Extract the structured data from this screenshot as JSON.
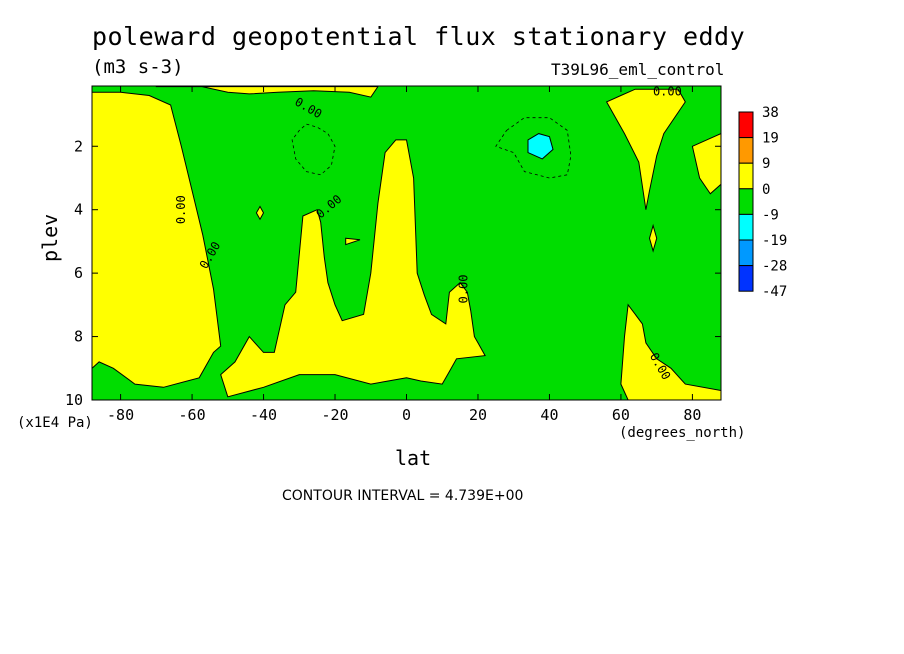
{
  "chart_data": {
    "type": "heatmap",
    "title": "poleward geopotential flux stationary eddy",
    "units": "(m3 s-3)",
    "run_label": "T39L96_eml_control",
    "xlabel": "lat",
    "x_units": "(degrees_north)",
    "ylabel": "plev",
    "y_units": "(x1E4 Pa)",
    "xlim": [
      -88,
      88
    ],
    "ylim": [
      10,
      0.1
    ],
    "x_ticks": [
      -80,
      -60,
      -40,
      -20,
      0,
      20,
      40,
      60,
      80
    ],
    "y_ticks": [
      2,
      4,
      6,
      8,
      10
    ],
    "contour_interval_text": "CONTOUR INTERVAL = 4.739E+00",
    "contour_line_label": "0.00",
    "colorbar": {
      "levels": [
        "38",
        "19",
        "9",
        "0",
        "-9",
        "-19",
        "-28",
        "-47"
      ],
      "colors": [
        "#ff0000",
        "#ff9900",
        "#ffff00",
        "#00dd00",
        "#00ffff",
        "#0099ff",
        "#0033ff"
      ]
    },
    "region_colors": {
      "positive_0_to_9": "#ffff00",
      "negative_-9_to_0": "#00dd00",
      "negative_-19_to_-9": "#00ffff",
      "frame": "#000000"
    },
    "regions": [
      {
        "value_class": "negative_-9_to_0",
        "polygon": [
          [
            -88,
            0.1
          ],
          [
            88,
            0.1
          ],
          [
            88,
            10
          ],
          [
            -88,
            10
          ]
        ]
      },
      {
        "value_class": "positive_0_to_9",
        "polygon": [
          [
            -88,
            0.3
          ],
          [
            -80,
            0.3
          ],
          [
            -72,
            0.4
          ],
          [
            -66,
            0.7
          ],
          [
            -63,
            2.0
          ],
          [
            -60,
            3.4
          ],
          [
            -57,
            4.8
          ],
          [
            -54,
            6.5
          ],
          [
            -52,
            8.3
          ],
          [
            -54,
            8.5
          ],
          [
            -58,
            9.3
          ],
          [
            -68,
            9.6
          ],
          [
            -76,
            9.5
          ],
          [
            -82,
            9.0
          ],
          [
            -86,
            8.8
          ],
          [
            -88,
            9.0
          ]
        ]
      },
      {
        "value_class": "positive_0_to_9",
        "polygon": [
          [
            -70,
            0.1
          ],
          [
            -58,
            0.1
          ],
          [
            -50,
            0.3
          ],
          [
            -44,
            0.35
          ],
          [
            -36,
            0.3
          ],
          [
            -26,
            0.25
          ],
          [
            -16,
            0.3
          ],
          [
            -10,
            0.45
          ],
          [
            -8,
            0.12
          ],
          [
            -70,
            0.12
          ]
        ]
      },
      {
        "value_class": "positive_0_to_9",
        "polygon": [
          [
            -25,
            4.0
          ],
          [
            -24,
            4.4
          ],
          [
            -23,
            5.5
          ],
          [
            -22,
            6.3
          ],
          [
            -20,
            7.0
          ],
          [
            -18,
            7.5
          ],
          [
            -12,
            7.3
          ],
          [
            -10,
            6.0
          ],
          [
            -8,
            3.8
          ],
          [
            -6,
            2.2
          ],
          [
            -3,
            1.8
          ],
          [
            0,
            1.8
          ],
          [
            2,
            3.0
          ],
          [
            3,
            6.0
          ],
          [
            5,
            6.7
          ],
          [
            7,
            7.3
          ],
          [
            11,
            7.6
          ],
          [
            12,
            6.6
          ],
          [
            15,
            6.3
          ],
          [
            17,
            6.6
          ],
          [
            18,
            7.2
          ],
          [
            19,
            8.0
          ],
          [
            20,
            8.2
          ],
          [
            22,
            8.6
          ],
          [
            14,
            8.7
          ],
          [
            12,
            9.1
          ],
          [
            10,
            9.5
          ],
          [
            4,
            9.4
          ],
          [
            0,
            9.3
          ],
          [
            -10,
            9.5
          ],
          [
            -20,
            9.2
          ],
          [
            -30,
            9.2
          ],
          [
            -40,
            9.6
          ],
          [
            -50,
            9.9
          ],
          [
            -52,
            9.2
          ],
          [
            -48,
            8.8
          ],
          [
            -44,
            8.0
          ],
          [
            -40,
            8.5
          ],
          [
            -37,
            8.5
          ],
          [
            -34,
            7.0
          ],
          [
            -31,
            6.6
          ],
          [
            -29,
            4.2
          ]
        ]
      },
      {
        "value_class": "positive_0_to_9",
        "polygon": [
          [
            56,
            0.6
          ],
          [
            60,
            0.4
          ],
          [
            64,
            0.2
          ],
          [
            70,
            0.2
          ],
          [
            76,
            0.2
          ],
          [
            78,
            0.6
          ],
          [
            72,
            1.6
          ],
          [
            70,
            2.3
          ],
          [
            68,
            3.4
          ],
          [
            67,
            4.0
          ],
          [
            65,
            2.5
          ],
          [
            61,
            1.6
          ]
        ]
      },
      {
        "value_class": "positive_0_to_9",
        "polygon": [
          [
            62,
            7.0
          ],
          [
            66,
            7.6
          ],
          [
            67,
            8.2
          ],
          [
            70,
            8.7
          ],
          [
            74,
            9.0
          ],
          [
            78,
            9.5
          ],
          [
            88,
            9.7
          ],
          [
            88,
            10
          ],
          [
            62,
            10
          ],
          [
            60,
            9.5
          ],
          [
            61,
            8.0
          ]
        ]
      },
      {
        "value_class": "positive_0_to_9",
        "polygon": [
          [
            80,
            2.0
          ],
          [
            84,
            1.8
          ],
          [
            88,
            1.6
          ],
          [
            88,
            3.2
          ],
          [
            85,
            3.5
          ],
          [
            82,
            3.0
          ]
        ]
      },
      {
        "value_class": "positive_0_to_9",
        "polygon": [
          [
            -89,
            1.5
          ],
          [
            -88,
            1.5
          ],
          [
            -88,
            4.0
          ],
          [
            -89,
            4.0
          ]
        ]
      },
      {
        "value_class": "positive_0_to_9",
        "polygon": [
          [
            -41,
            3.9
          ],
          [
            -40,
            4.1
          ],
          [
            -41,
            4.3
          ],
          [
            -42,
            4.1
          ]
        ]
      },
      {
        "value_class": "positive_0_to_9",
        "polygon": [
          [
            -17,
            4.9
          ],
          [
            -13,
            4.95
          ],
          [
            -17,
            5.1
          ]
        ]
      },
      {
        "value_class": "positive_0_to_9",
        "polygon": [
          [
            69,
            4.5
          ],
          [
            70,
            4.9
          ],
          [
            69,
            5.3
          ],
          [
            68,
            4.9
          ]
        ]
      },
      {
        "value_class": "negative_-19_to_-9",
        "polygon": [
          [
            34,
            1.8
          ],
          [
            37,
            1.6
          ],
          [
            40,
            1.7
          ],
          [
            41,
            2.1
          ],
          [
            38,
            2.4
          ],
          [
            34,
            2.2
          ]
        ]
      }
    ],
    "dashed_contours": [
      [
        [
          -28,
          1.3
        ],
        [
          -25,
          1.4
        ],
        [
          -22,
          1.6
        ],
        [
          -20,
          2.0
        ],
        [
          -21,
          2.6
        ],
        [
          -24,
          2.9
        ],
        [
          -28,
          2.8
        ],
        [
          -31,
          2.4
        ],
        [
          -32,
          1.8
        ],
        [
          -30,
          1.5
        ],
        [
          -28,
          1.3
        ]
      ],
      [
        [
          28,
          1.5
        ],
        [
          33,
          1.1
        ],
        [
          40,
          1.1
        ],
        [
          45,
          1.5
        ],
        [
          46,
          2.3
        ],
        [
          45,
          2.9
        ],
        [
          40,
          3.0
        ],
        [
          33,
          2.8
        ],
        [
          30,
          2.2
        ],
        [
          25,
          2.0
        ],
        [
          28,
          1.5
        ]
      ]
    ],
    "contour_labels": [
      {
        "x": -28,
        "y": 0.9,
        "text": "0.00",
        "angle": 30
      },
      {
        "x": -62,
        "y": 4.0,
        "text": "0.00",
        "angle": -90
      },
      {
        "x": -54,
        "y": 5.5,
        "text": "0.00",
        "angle": -60
      },
      {
        "x": -21,
        "y": 4.0,
        "text": "0.00",
        "angle": -40
      },
      {
        "x": 17,
        "y": 6.5,
        "text": "0.00",
        "angle": -90
      },
      {
        "x": 73,
        "y": 0.4,
        "text": "0.00",
        "angle": 0
      },
      {
        "x": 70,
        "y": 9.0,
        "text": "0.00",
        "angle": 60
      }
    ]
  }
}
